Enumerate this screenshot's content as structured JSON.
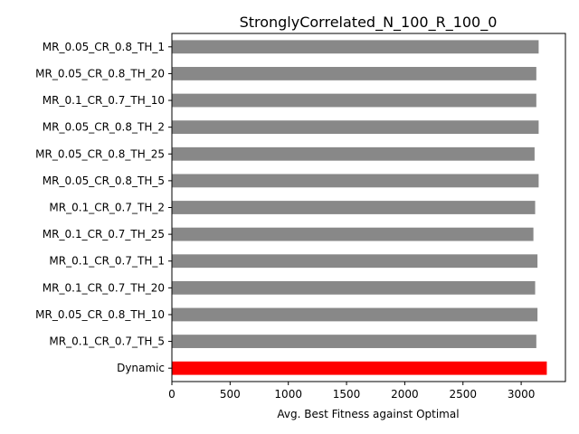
{
  "chart_data": {
    "type": "bar",
    "orientation": "horizontal",
    "title": "StronglyCorrelated_N_100_R_100_0",
    "xlabel": "Avg. Best Fitness against Optimal",
    "ylabel": "",
    "xlim": [
      0,
      3380
    ],
    "xticks": [
      0,
      500,
      1000,
      1500,
      2000,
      2500,
      3000
    ],
    "grid": false,
    "categories": [
      "MR_0.05_CR_0.8_TH_1",
      "MR_0.05_CR_0.8_TH_20",
      "MR_0.1_CR_0.7_TH_10",
      "MR_0.05_CR_0.8_TH_2",
      "MR_0.05_CR_0.8_TH_25",
      "MR_0.05_CR_0.8_TH_5",
      "MR_0.1_CR_0.7_TH_2",
      "MR_0.1_CR_0.7_TH_25",
      "MR_0.1_CR_0.7_TH_1",
      "MR_0.1_CR_0.7_TH_20",
      "MR_0.05_CR_0.8_TH_10",
      "MR_0.1_CR_0.7_TH_5",
      "Dynamic"
    ],
    "values": [
      3150,
      3130,
      3130,
      3150,
      3115,
      3150,
      3120,
      3105,
      3140,
      3120,
      3140,
      3130,
      3220
    ],
    "colors": [
      "#888888",
      "#888888",
      "#888888",
      "#888888",
      "#888888",
      "#888888",
      "#888888",
      "#888888",
      "#888888",
      "#888888",
      "#888888",
      "#888888",
      "#ff0000"
    ]
  }
}
